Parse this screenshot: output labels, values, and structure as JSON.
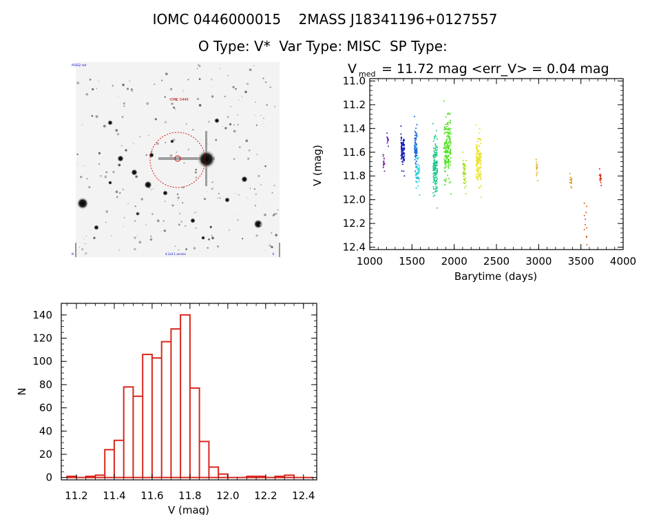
{
  "header": {
    "object_id": "IOMC 0446000015",
    "twomass_id": "2MASS J18341196+0127557",
    "o_type_label": "O Type:",
    "o_type_value": "V*",
    "var_type_label": "Var Type:",
    "var_type_value": "MISC",
    "sp_type_label": "SP Type:",
    "sp_type_value": ""
  },
  "finder": {
    "corner_top_left": "POSS2 red",
    "target_label": "IOMC 0446",
    "corner_bottom_left": "N",
    "corner_bottom_center": "4.1x4.1 arcmin",
    "corner_bottom_right": "E"
  },
  "colors": {
    "histogram": "#d9261c",
    "circle": "#cc0000"
  },
  "chart_data": [
    {
      "type": "scatter",
      "name": "light-curve",
      "title_prefix": "V",
      "title_sub": "med",
      "title_rest": " = 11.72 mag <err_V> = 0.04 mag",
      "xlabel": "Barytime (days)",
      "ylabel": "V (mag)",
      "xlim": [
        1000,
        4000
      ],
      "ylim": [
        12.42,
        10.98
      ],
      "x_ticks": [
        1000,
        1500,
        2000,
        2500,
        3000,
        3500,
        4000
      ],
      "y_ticks": [
        "11.0",
        "11.2",
        "11.4",
        "11.6",
        "11.8",
        "12.0",
        "12.2",
        "12.4"
      ],
      "clusters": [
        {
          "x": [
            1160,
            1175
          ],
          "ymin": 11.62,
          "ymax": 11.76,
          "n": 12,
          "color": "#7a2a9a"
        },
        {
          "x": [
            1205,
            1220
          ],
          "ymin": 11.44,
          "ymax": 11.55,
          "n": 10,
          "color": "#6a1ab0"
        },
        {
          "x": [
            1370,
            1410
          ],
          "ymin": 11.38,
          "ymax": 11.8,
          "n": 80,
          "color": "#1a1ab8"
        },
        {
          "x": [
            1530,
            1560
          ],
          "ymin": 11.3,
          "ymax": 11.82,
          "n": 70,
          "color": "#1a6ae0"
        },
        {
          "x": [
            1545,
            1590
          ],
          "ymin": 11.55,
          "ymax": 11.96,
          "n": 40,
          "color": "#1ad0e0"
        },
        {
          "x": [
            1750,
            1800
          ],
          "ymin": 11.36,
          "ymax": 12.07,
          "n": 140,
          "color": "#1ac88a"
        },
        {
          "x": [
            1880,
            1960
          ],
          "ymin": 11.17,
          "ymax": 11.95,
          "n": 170,
          "color": "#4ae01a"
        },
        {
          "x": [
            2100,
            2140
          ],
          "ymin": 11.6,
          "ymax": 11.95,
          "n": 40,
          "color": "#a8e01a"
        },
        {
          "x": [
            2260,
            2320
          ],
          "ymin": 11.37,
          "ymax": 11.98,
          "n": 110,
          "color": "#e8e01a"
        },
        {
          "x": [
            2970,
            2990
          ],
          "ymin": 11.66,
          "ymax": 11.84,
          "n": 12,
          "color": "#e0b01a"
        },
        {
          "x": [
            3370,
            3390
          ],
          "ymin": 11.78,
          "ymax": 11.9,
          "n": 10,
          "color": "#e0901a"
        },
        {
          "x": [
            3540,
            3570
          ],
          "ymin": 12.03,
          "ymax": 12.38,
          "n": 9,
          "color": "#d8601a"
        },
        {
          "x": [
            3720,
            3740
          ],
          "ymin": 11.74,
          "ymax": 11.88,
          "n": 12,
          "color": "#d8301a"
        }
      ]
    },
    {
      "type": "bar",
      "name": "histogram",
      "xlabel": "V (mag)",
      "ylabel": "N",
      "xlim": [
        11.12,
        12.47
      ],
      "ylim": [
        -2,
        150
      ],
      "x_ticks": [
        "11.2",
        "11.4",
        "11.6",
        "11.8",
        "12.0",
        "12.2",
        "12.4"
      ],
      "y_ticks": [
        "0",
        "20",
        "40",
        "60",
        "80",
        "100",
        "120",
        "140"
      ],
      "bin_width": 0.05,
      "bin_starts": [
        11.15,
        11.2,
        11.25,
        11.3,
        11.35,
        11.4,
        11.45,
        11.5,
        11.55,
        11.6,
        11.65,
        11.7,
        11.75,
        11.8,
        11.85,
        11.9,
        11.95,
        12.0,
        12.05,
        12.1,
        12.15,
        12.2,
        12.25,
        12.3,
        12.35,
        12.4
      ],
      "counts": [
        1,
        0,
        1,
        2,
        24,
        32,
        78,
        70,
        106,
        103,
        117,
        128,
        140,
        77,
        31,
        9,
        3,
        0,
        0,
        1,
        1,
        0,
        1,
        2,
        0,
        0
      ]
    }
  ]
}
